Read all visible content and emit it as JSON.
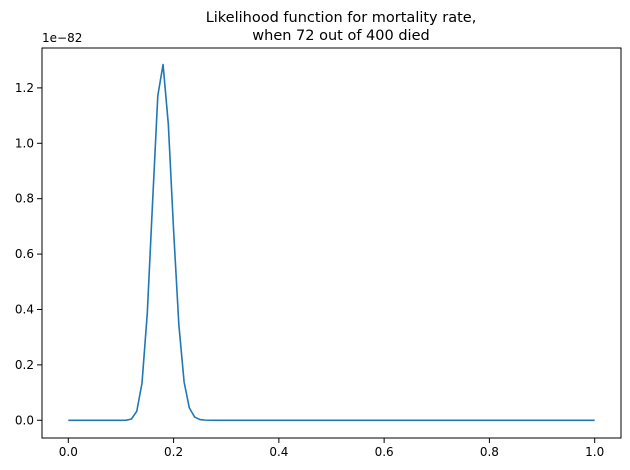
{
  "chart_data": {
    "type": "line",
    "title_lines": [
      "Likelihood function for mortality rate,",
      "when 72 out of 400 died"
    ],
    "xlabel": "",
    "ylabel": "",
    "y_offset_label": "1e−82",
    "y_scale": 1e-82,
    "xlim": [
      -0.05,
      1.05
    ],
    "ylim": [
      -0.064,
      1.344
    ],
    "x_ticks": [
      0.0,
      0.2,
      0.4,
      0.6,
      0.8,
      1.0
    ],
    "x_tick_labels": [
      "0.0",
      "0.2",
      "0.4",
      "0.6",
      "0.8",
      "1.0"
    ],
    "y_ticks": [
      0.0,
      0.2,
      0.4,
      0.6,
      0.8,
      1.0,
      1.2
    ],
    "y_tick_labels": [
      "0.0",
      "0.2",
      "0.4",
      "0.6",
      "0.8",
      "1.0",
      "1.2"
    ],
    "grid": false,
    "legend": "none",
    "series": [
      {
        "color": "#1f77b4",
        "x": [
          0.0,
          0.1,
          0.11,
          0.12,
          0.13,
          0.14,
          0.15,
          0.16,
          0.17,
          0.18,
          0.19,
          0.2,
          0.21,
          0.22,
          0.23,
          0.24,
          0.25,
          0.26,
          0.27,
          0.28,
          0.3,
          1.0
        ],
        "y": [
          0.0,
          0.0,
          0.0003,
          0.0047,
          0.0322,
          0.1342,
          0.3856,
          0.7841,
          1.1717,
          1.2842,
          1.0687,
          0.6861,
          0.3449,
          0.1377,
          0.0442,
          0.0116,
          0.0025,
          0.0005,
          0.0001,
          0.0,
          0.0,
          0.0
        ]
      }
    ]
  }
}
